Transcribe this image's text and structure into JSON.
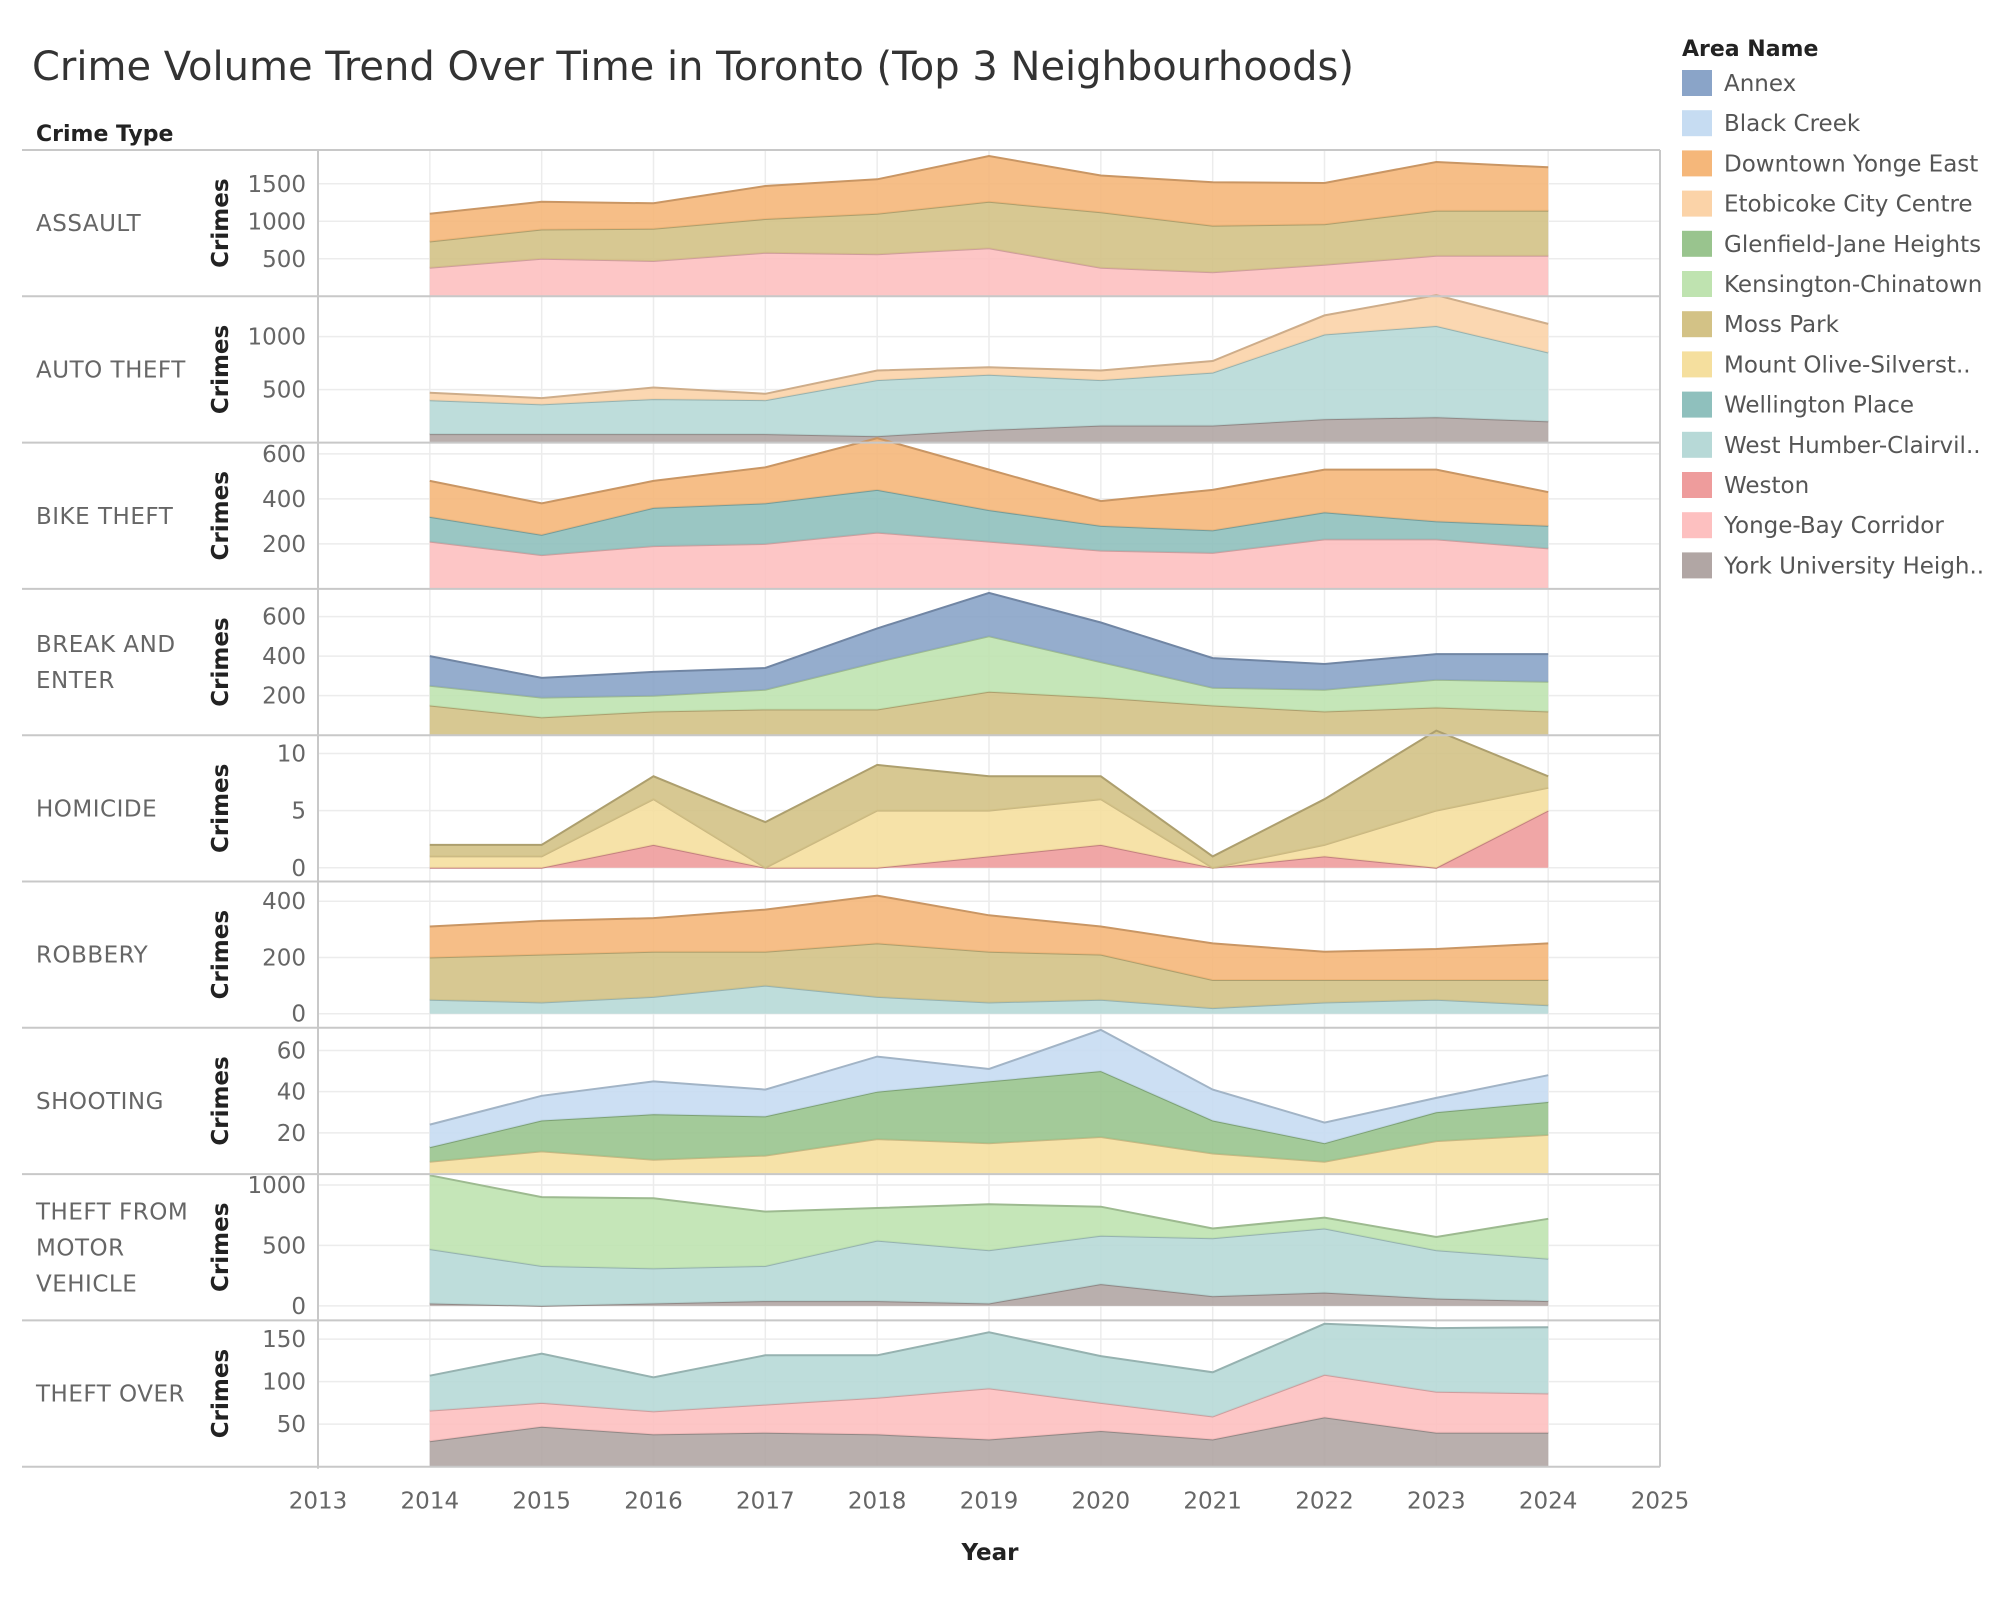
{
  "chart_data": {
    "type": "area",
    "title": "Crime Volume Trend Over Time in Toronto (Top 3 Neighbourhoods)",
    "row_header": "Crime Type",
    "xlabel": "Year",
    "ylabel": "Crimes",
    "x_ticks": [
      "2013",
      "2014",
      "2015",
      "2016",
      "2017",
      "2018",
      "2019",
      "2020",
      "2021",
      "2022",
      "2023",
      "2024",
      "2025"
    ],
    "x_range": [
      2013,
      2025
    ],
    "grid": true,
    "stacked": true,
    "legend": {
      "title": "Area Name",
      "position": "right",
      "items": [
        {
          "name": "Annex",
          "color": "#8aa4c8"
        },
        {
          "name": "Black Creek",
          "color": "#c6dcf2"
        },
        {
          "name": "Downtown Yonge East",
          "color": "#f5b77a"
        },
        {
          "name": "Etobicoke City Centre",
          "color": "#fbd3a8"
        },
        {
          "name": "Glenfield-Jane Heights",
          "color": "#99c48e"
        },
        {
          "name": "Kensington-Chinatown",
          "color": "#bfe3b0"
        },
        {
          "name": "Moss Park",
          "color": "#d3c286"
        },
        {
          "name": "Mount Olive-Silverst..",
          "color": "#f5df9e"
        },
        {
          "name": "Wellington Place",
          "color": "#8fc0bd"
        },
        {
          "name": "West Humber-Clairvil..",
          "color": "#b7d9d7"
        },
        {
          "name": "Weston",
          "color": "#ee9c9c"
        },
        {
          "name": "Yonge-Bay Corridor",
          "color": "#fdc0c0"
        },
        {
          "name": "York University Heigh..",
          "color": "#b1a6a4"
        }
      ]
    },
    "years": [
      2014,
      2015,
      2016,
      2017,
      2018,
      2019,
      2020,
      2021,
      2022,
      2023,
      2024
    ],
    "panels": [
      {
        "label": "ASSAULT",
        "y_ticks": [
          500,
          1000,
          1500
        ],
        "ylim": [
          0,
          1950
        ],
        "series": [
          {
            "name": "Yonge-Bay Corridor",
            "values": [
              380,
              500,
              470,
              580,
              560,
              640,
              380,
              320,
              420,
              540,
              540
            ]
          },
          {
            "name": "Moss Park",
            "values": [
              350,
              390,
              430,
              450,
              540,
              620,
              740,
              620,
              540,
              600,
              600
            ]
          },
          {
            "name": "Downtown Yonge East",
            "values": [
              370,
              370,
              340,
              440,
              460,
              610,
              490,
              580,
              550,
              650,
              580
            ]
          }
        ]
      },
      {
        "label": "AUTO THEFT",
        "y_ticks": [
          500,
          1000
        ],
        "ylim": [
          0,
          1380
        ],
        "series": [
          {
            "name": "York University Heigh..",
            "values": [
              80,
              80,
              80,
              80,
              60,
              120,
              160,
              160,
              220,
              240,
              200
            ]
          },
          {
            "name": "West Humber-Clairvil..",
            "values": [
              320,
              280,
              330,
              320,
              530,
              520,
              430,
              500,
              800,
              860,
              650
            ]
          },
          {
            "name": "Etobicoke City Centre",
            "values": [
              70,
              60,
              110,
              60,
              90,
              70,
              90,
              110,
              180,
              290,
              270
            ]
          }
        ]
      },
      {
        "label": "BIKE THEFT",
        "y_ticks": [
          200,
          400,
          600
        ],
        "ylim": [
          0,
          650
        ],
        "series": [
          {
            "name": "Yonge-Bay Corridor",
            "values": [
              210,
              150,
              190,
              200,
              250,
              210,
              170,
              160,
              220,
              220,
              180
            ]
          },
          {
            "name": "Wellington Place",
            "values": [
              110,
              90,
              170,
              180,
              190,
              140,
              110,
              100,
              120,
              80,
              100
            ]
          },
          {
            "name": "Downtown Yonge East",
            "values": [
              160,
              140,
              120,
              160,
              230,
              180,
              110,
              180,
              190,
              230,
              150
            ]
          }
        ]
      },
      {
        "label": "BREAK AND\nENTER",
        "y_ticks": [
          200,
          400,
          600
        ],
        "ylim": [
          0,
          740
        ],
        "series": [
          {
            "name": "Moss Park",
            "values": [
              150,
              90,
              120,
              130,
              130,
              220,
              190,
              150,
              120,
              140,
              120
            ]
          },
          {
            "name": "Kensington-Chinatown",
            "values": [
              100,
              100,
              80,
              100,
              240,
              280,
              180,
              90,
              110,
              140,
              150
            ]
          },
          {
            "name": "Annex",
            "values": [
              150,
              100,
              120,
              110,
              170,
              220,
              200,
              150,
              130,
              130,
              140
            ]
          }
        ]
      },
      {
        "label": "HOMICIDE",
        "y_ticks": [
          0,
          5,
          10
        ],
        "ylim": [
          -1.2,
          11.6
        ],
        "series": [
          {
            "name": "Weston",
            "values": [
              0,
              0,
              2,
              0,
              0,
              1,
              2,
              0,
              1,
              0,
              5
            ]
          },
          {
            "name": "Mount Olive-Silverst..",
            "values": [
              1,
              1,
              4,
              0,
              5,
              4,
              4,
              0,
              1,
              5,
              2
            ]
          },
          {
            "name": "Moss Park",
            "values": [
              1,
              1,
              2,
              4,
              4,
              3,
              2,
              1,
              4,
              7,
              1
            ]
          }
        ]
      },
      {
        "label": "ROBBERY",
        "y_ticks": [
          0,
          200,
          400
        ],
        "ylim": [
          -50,
          470
        ],
        "series": [
          {
            "name": "West Humber-Clairvil..",
            "values": [
              50,
              40,
              60,
              100,
              60,
              40,
              50,
              20,
              40,
              50,
              30
            ]
          },
          {
            "name": "Moss Park",
            "values": [
              150,
              170,
              160,
              120,
              190,
              180,
              160,
              100,
              80,
              70,
              90
            ]
          },
          {
            "name": "Downtown Yonge East",
            "values": [
              110,
              120,
              120,
              150,
              170,
              130,
              100,
              130,
              100,
              110,
              130
            ]
          }
        ]
      },
      {
        "label": "SHOOTING",
        "y_ticks": [
          20,
          40,
          60
        ],
        "ylim": [
          0,
          71
        ],
        "series": [
          {
            "name": "Mount Olive-Silverst..",
            "values": [
              6,
              11,
              7,
              9,
              17,
              15,
              18,
              10,
              6,
              16,
              19
            ]
          },
          {
            "name": "Glenfield-Jane Heights",
            "values": [
              7,
              15,
              22,
              19,
              23,
              30,
              32,
              16,
              9,
              14,
              16
            ]
          },
          {
            "name": "Black Creek",
            "values": [
              11,
              12,
              16,
              13,
              17,
              6,
              20,
              15,
              10,
              7,
              13
            ]
          }
        ]
      },
      {
        "label": "THEFT FROM\nMOTOR\nVEHICLE",
        "y_ticks": [
          0,
          500,
          1000
        ],
        "ylim": [
          -120,
          1090
        ],
        "series": [
          {
            "name": "York University Heigh..",
            "values": [
              20,
              0,
              20,
              40,
              40,
              20,
              180,
              80,
              110,
              60,
              40
            ]
          },
          {
            "name": "West Humber-Clairvil..",
            "values": [
              450,
              330,
              290,
              290,
              500,
              440,
              400,
              480,
              530,
              400,
              350
            ]
          },
          {
            "name": "Kensington-Chinatown",
            "values": [
              610,
              570,
              580,
              450,
              270,
              380,
              240,
              80,
              90,
              110,
              330
            ]
          }
        ]
      },
      {
        "label": "THEFT OVER",
        "y_ticks": [
          50,
          100,
          150
        ],
        "ylim": [
          0,
          172
        ],
        "series": [
          {
            "name": "York University Heigh..",
            "values": [
              30,
              47,
              38,
              40,
              38,
              32,
              42,
              32,
              58,
              40,
              40
            ]
          },
          {
            "name": "Yonge-Bay Corridor",
            "values": [
              36,
              28,
              27,
              33,
              43,
              60,
              33,
              27,
              50,
              48,
              46
            ]
          },
          {
            "name": "West Humber-Clairvil..",
            "values": [
              41,
              58,
              40,
              58,
              50,
              66,
              55,
              52,
              60,
              75,
              78
            ]
          }
        ]
      }
    ]
  }
}
